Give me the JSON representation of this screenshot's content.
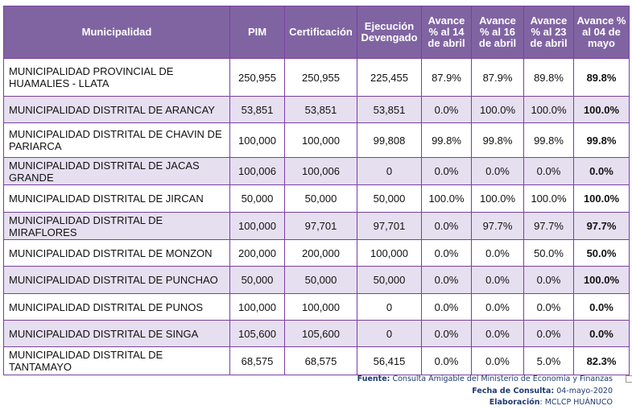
{
  "headers": [
    "Municipalidad",
    "PIM",
    "Certificación",
    "Ejecución Devengado",
    "Avance % al 14 de abril",
    "Avance % al 16 de abril",
    "Avance % al 23 de abril",
    "Avance % al 04 de mayo"
  ],
  "rows": [
    [
      "MUNICIPALIDAD PROVINCIAL DE HUAMALIES - LLATA",
      "250,955",
      "250,955",
      "225,455",
      "87.9%",
      "87.9%",
      "89.8%",
      "89.8%"
    ],
    [
      "MUNICIPALIDAD DISTRITAL DE ARANCAY",
      "53,851",
      "53,851",
      "53,851",
      "0.0%",
      "100.0%",
      "100.0%",
      "100.0%"
    ],
    [
      "MUNICIPALIDAD DISTRITAL DE CHAVIN DE PARIARCA",
      "100,000",
      "100,000",
      "99,808",
      "99.8%",
      "99.8%",
      "99.8%",
      "99.8%"
    ],
    [
      "MUNICIPALIDAD DISTRITAL DE JACAS GRANDE",
      "100,006",
      "100,006",
      "0",
      "0.0%",
      "0.0%",
      "0.0%",
      "0.0%"
    ],
    [
      "MUNICIPALIDAD DISTRITAL DE JIRCAN",
      "50,000",
      "50,000",
      "50,000",
      "100.0%",
      "100.0%",
      "100.0%",
      "100.0%"
    ],
    [
      "MUNICIPALIDAD DISTRITAL DE MIRAFLORES",
      "100,000",
      "97,701",
      "97,701",
      "0.0%",
      "97.7%",
      "97.7%",
      "97.7%"
    ],
    [
      "MUNICIPALIDAD DISTRITAL DE MONZON",
      "200,000",
      "200,000",
      "100,000",
      "0.0%",
      "0.0%",
      "50.0%",
      "50.0%"
    ],
    [
      "MUNICIPALIDAD DISTRITAL DE PUNCHAO",
      "50,000",
      "50,000",
      "50,000",
      "0.0%",
      "0.0%",
      "0.0%",
      "100.0%"
    ],
    [
      "MUNICIPALIDAD DISTRITAL DE PUNOS",
      "100,000",
      "100,000",
      "0",
      "0.0%",
      "0.0%",
      "0.0%",
      "0.0%"
    ],
    [
      "MUNICIPALIDAD DISTRITAL DE SINGA",
      "105,600",
      "105,600",
      "0",
      "0.0%",
      "0.0%",
      "0.0%",
      "0.0%"
    ],
    [
      "MUNICIPALIDAD DISTRITAL DE TANTAMAYO",
      "68,575",
      "68,575",
      "56,415",
      "0.0%",
      "0.0%",
      "5.0%",
      "82.3%"
    ]
  ],
  "footer": {
    "fuente_label": "Fuente:",
    "fuente": " Consulta Amigable del Ministerio de Economía y Finanzas",
    "fecha_label": "Fecha de Consulta:",
    "fecha": " 04-mayo-2020",
    "elab_label": "Elaboración",
    "elab": ": MCLCP HUÁNUCO"
  },
  "colors": {
    "header": "#8064a2",
    "shade": "#e6dff0",
    "border": "#7a3fa0"
  }
}
